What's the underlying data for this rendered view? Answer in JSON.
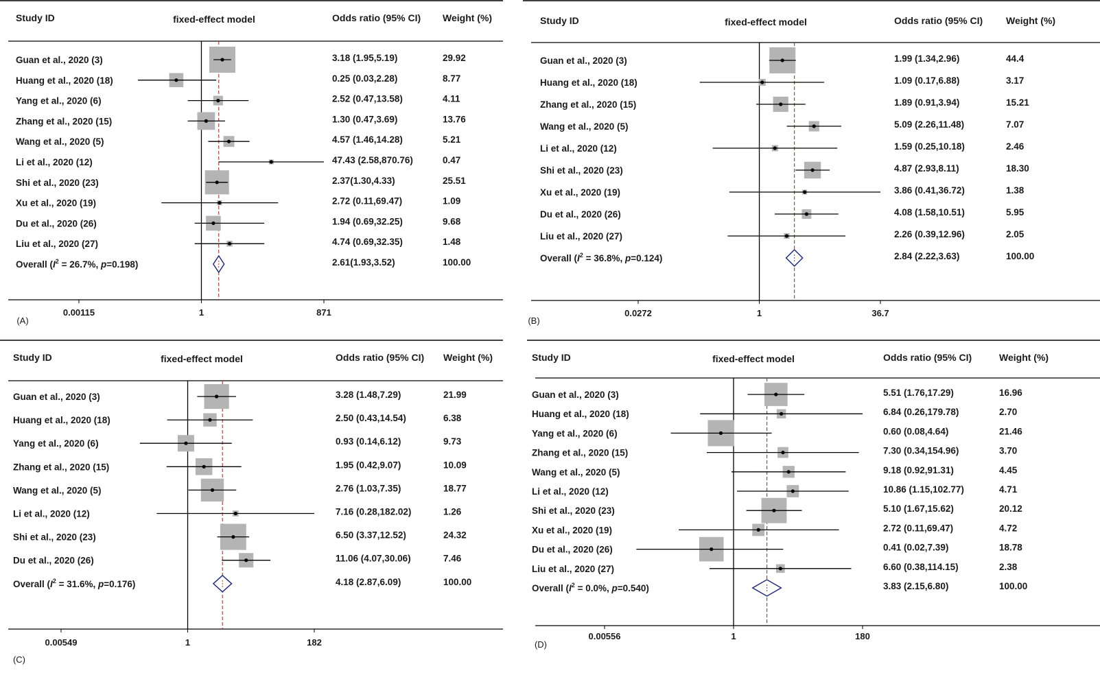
{
  "chart_data": [
    {
      "type": "forest",
      "panel_label": "(A)",
      "headers": {
        "study": "Study ID",
        "model": "fixed-effect model",
        "or": "Odds ratio (95% CI)",
        "weight": "Weight (%)"
      },
      "x_scale": "log",
      "xlim": [
        0.00115,
        871
      ],
      "x_ticks": [
        "0.00115",
        "1",
        "871"
      ],
      "studies": [
        {
          "study": "Guan et al., 2020 (3)",
          "or": 3.18,
          "lower": 1.95,
          "upper": 5.19,
          "or_text": "3.18 (1.95,5.19)",
          "weight": "29.92"
        },
        {
          "study": "Huang et al., 2020 (18)",
          "or": 0.25,
          "lower": 0.03,
          "upper": 2.28,
          "or_text": "0.25 (0.03,2.28)",
          "weight": "8.77"
        },
        {
          "study": "Yang et al., 2020 (6)",
          "or": 2.52,
          "lower": 0.47,
          "upper": 13.58,
          "or_text": "2.52 (0.47,13.58)",
          "weight": "4.11"
        },
        {
          "study": "Zhang et al., 2020 (15)",
          "or": 1.3,
          "lower": 0.47,
          "upper": 3.69,
          "or_text": "1.30 (0.47,3.69)",
          "weight": "13.76"
        },
        {
          "study": "Wang et al., 2020 (5)",
          "or": 4.57,
          "lower": 1.46,
          "upper": 14.28,
          "or_text": "4.57 (1.46,14.28)",
          "weight": "5.21"
        },
        {
          "study": "Li et al., 2020 (12)",
          "or": 47.43,
          "lower": 2.58,
          "upper": 870.76,
          "or_text": "47.43 (2.58,870.76)",
          "weight": "0.47"
        },
        {
          "study": "Shi et al., 2020 (23)",
          "or": 2.37,
          "lower": 1.3,
          "upper": 4.33,
          "or_text": "2.37(1.30,4.33)",
          "weight": "25.51"
        },
        {
          "study": "Xu et al., 2020 (19)",
          "or": 2.72,
          "lower": 0.11,
          "upper": 69.47,
          "or_text": "2.72 (0.11,69.47)",
          "weight": "1.09"
        },
        {
          "study": "Du et al., 2020 (26)",
          "or": 1.94,
          "lower": 0.69,
          "upper": 32.25,
          "or_text": "1.94 (0.69,32.25)",
          "weight": "9.68"
        },
        {
          "study": "Liu et al., 2020 (27)",
          "or": 4.74,
          "lower": 0.69,
          "upper": 32.35,
          "or_text": "4.74 (0.69,32.35)",
          "weight": "1.48"
        }
      ],
      "overall": {
        "label_prefix": "Overall (",
        "i2_symbol": "I",
        "i2_sup": "2",
        "i2_text": " = 26.7%,  ",
        "p_symbol": "p",
        "p_text": "=0.198)",
        "or": 2.61,
        "lower": 1.93,
        "upper": 3.52,
        "or_text": "2.61(1.93,3.52)",
        "weight": "100.00"
      }
    },
    {
      "type": "forest",
      "panel_label": "(B)",
      "headers": {
        "study": "Study ID",
        "model": "fixed-effect model",
        "or": "Odds ratio (95% CI)",
        "weight": "Weight (%)"
      },
      "x_scale": "log",
      "xlim": [
        0.0272,
        36.7
      ],
      "x_ticks": [
        "0.0272",
        "1",
        "36.7"
      ],
      "studies": [
        {
          "study": "Guan et al., 2020 (3)",
          "or": 1.99,
          "lower": 1.34,
          "upper": 2.96,
          "or_text": "1.99 (1.34,2.96)",
          "weight": "44.4"
        },
        {
          "study": "Huang et al., 2020 (18)",
          "or": 1.09,
          "lower": 0.17,
          "upper": 6.88,
          "or_text": "1.09 (0.17,6.88)",
          "weight": "3.17"
        },
        {
          "study": "Zhang et al., 2020 (15)",
          "or": 1.89,
          "lower": 0.91,
          "upper": 3.94,
          "or_text": "1.89 (0.91,3.94)",
          "weight": "15.21"
        },
        {
          "study": "Wang et al., 2020 (5)",
          "or": 5.09,
          "lower": 2.26,
          "upper": 11.48,
          "or_text": "5.09 (2.26,11.48)",
          "weight": "7.07"
        },
        {
          "study": "Li et al., 2020 (12)",
          "or": 1.59,
          "lower": 0.25,
          "upper": 10.18,
          "or_text": "1.59 (0.25,10.18)",
          "weight": "2.46"
        },
        {
          "study": "Shi et al., 2020 (23)",
          "or": 4.87,
          "lower": 2.93,
          "upper": 8.11,
          "or_text": "4.87 (2.93,8.11)",
          "weight": "18.30"
        },
        {
          "study": "Xu et al., 2020 (19)",
          "or": 3.86,
          "lower": 0.41,
          "upper": 36.72,
          "or_text": "3.86 (0.41,36.72)",
          "weight": "1.38"
        },
        {
          "study": "Du et al., 2020 (26)",
          "or": 4.08,
          "lower": 1.58,
          "upper": 10.51,
          "or_text": "4.08 (1.58,10.51)",
          "weight": "5.95"
        },
        {
          "study": "Liu et al., 2020 (27)",
          "or": 2.26,
          "lower": 0.39,
          "upper": 12.96,
          "or_text": "2.26 (0.39,12.96)",
          "weight": "2.05"
        }
      ],
      "overall": {
        "label_prefix": "Overall (",
        "i2_symbol": "I",
        "i2_sup": "2",
        "i2_text": " = 36.8%,  ",
        "p_symbol": "p",
        "p_text": "=0.124)",
        "or": 2.84,
        "lower": 2.22,
        "upper": 3.63,
        "or_text": "2.84 (2.22,3.63)",
        "weight": "100.00"
      }
    },
    {
      "type": "forest",
      "panel_label": "(C)",
      "headers": {
        "study": "Study ID",
        "model": "fixed-effect model",
        "or": "Odds ratio (95% CI)",
        "weight": "Weight (%)"
      },
      "x_scale": "log",
      "xlim": [
        0.00549,
        182
      ],
      "x_ticks": [
        "0.00549",
        "1",
        "182"
      ],
      "studies": [
        {
          "study": "Guan et al., 2020 (3)",
          "or": 3.28,
          "lower": 1.48,
          "upper": 7.29,
          "or_text": "3.28 (1.48,7.29)",
          "weight": "21.99"
        },
        {
          "study": "Huang et al., 2020 (18)",
          "or": 2.5,
          "lower": 0.43,
          "upper": 14.54,
          "or_text": "2.50 (0.43,14.54)",
          "weight": "6.38"
        },
        {
          "study": "Yang et al., 2020 (6)",
          "or": 0.93,
          "lower": 0.14,
          "upper": 6.12,
          "or_text": "0.93 (0.14,6.12)",
          "weight": "9.73"
        },
        {
          "study": "Zhang et al., 2020 (15)",
          "or": 1.95,
          "lower": 0.42,
          "upper": 9.07,
          "or_text": "1.95 (0.42,9.07)",
          "weight": "10.09"
        },
        {
          "study": "Wang et al., 2020 (5)",
          "or": 2.76,
          "lower": 1.03,
          "upper": 7.35,
          "or_text": "2.76 (1.03,7.35)",
          "weight": "18.77"
        },
        {
          "study": "Li et al., 2020 (12)",
          "or": 7.16,
          "lower": 0.28,
          "upper": 182.02,
          "or_text": "7.16 (0.28,182.02)",
          "weight": "1.26"
        },
        {
          "study": "Shi et al., 2020 (23)",
          "or": 6.5,
          "lower": 3.37,
          "upper": 12.52,
          "or_text": "6.50 (3.37,12.52)",
          "weight": "24.32"
        },
        {
          "study": "Du et al., 2020 (26)",
          "or": 11.06,
          "lower": 4.07,
          "upper": 30.06,
          "or_text": "11.06 (4.07,30.06)",
          "weight": "7.46"
        }
      ],
      "overall": {
        "label_prefix": "Overall (",
        "i2_symbol": "I",
        "i2_sup": "2",
        "i2_text": " = 31.6%,  ",
        "p_symbol": "p",
        "p_text": "=0.176)",
        "or": 4.18,
        "lower": 2.87,
        "upper": 6.09,
        "or_text": "4.18 (2.87,6.09)",
        "weight": "100.00"
      }
    },
    {
      "type": "forest",
      "panel_label": "(D)",
      "headers": {
        "study": "Study ID",
        "model": "fixed-effect model",
        "or": "Odds ratio (95% CI)",
        "weight": "Weight (%)"
      },
      "x_scale": "log",
      "xlim": [
        0.00556,
        180
      ],
      "x_ticks": [
        "0.00556",
        "1",
        "180"
      ],
      "studies": [
        {
          "study": "Guan et al., 2020 (3)",
          "or": 5.51,
          "lower": 1.76,
          "upper": 17.29,
          "or_text": "5.51 (1.76,17.29)",
          "weight": "16.96"
        },
        {
          "study": "Huang et al., 2020 (18)",
          "or": 6.84,
          "lower": 0.26,
          "upper": 179.78,
          "or_text": "6.84 (0.26,179.78)",
          "weight": "2.70"
        },
        {
          "study": "Yang et al., 2020 (6)",
          "or": 0.6,
          "lower": 0.08,
          "upper": 4.64,
          "or_text": "0.60 (0.08,4.64)",
          "weight": "21.46"
        },
        {
          "study": "Zhang et al., 2020 (15)",
          "or": 7.3,
          "lower": 0.34,
          "upper": 154.96,
          "or_text": "7.30 (0.34,154.96)",
          "weight": "3.70"
        },
        {
          "study": "Wang et al., 2020 (5)",
          "or": 9.18,
          "lower": 0.92,
          "upper": 91.31,
          "or_text": "9.18 (0.92,91.31)",
          "weight": "4.45"
        },
        {
          "study": "Li et al., 2020 (12)",
          "or": 10.86,
          "lower": 1.15,
          "upper": 102.77,
          "or_text": "10.86 (1.15,102.77)",
          "weight": "4.71"
        },
        {
          "study": "Shi et al., 2020 (23)",
          "or": 5.1,
          "lower": 1.67,
          "upper": 15.62,
          "or_text": "5.10 (1.67,15.62)",
          "weight": "20.12"
        },
        {
          "study": "Xu et al., 2020 (19)",
          "or": 2.72,
          "lower": 0.11,
          "upper": 69.47,
          "or_text": "2.72 (0.11,69.47)",
          "weight": "4.72"
        },
        {
          "study": "Du et al., 2020 (26)",
          "or": 0.41,
          "lower": 0.02,
          "upper": 7.39,
          "or_text": "0.41 (0.02,7.39)",
          "weight": "18.78"
        },
        {
          "study": "Liu et al., 2020 (27)",
          "or": 6.6,
          "lower": 0.38,
          "upper": 114.15,
          "or_text": "6.60 (0.38,114.15)",
          "weight": "2.38"
        }
      ],
      "overall": {
        "label_prefix": "Overall (",
        "i2_symbol": "I",
        "i2_sup": "2",
        "i2_text": " = 0.0%,  ",
        "p_symbol": "p",
        "p_text": "=0.540)",
        "or": 3.83,
        "lower": 2.15,
        "upper": 6.8,
        "or_text": "3.83 (2.15,6.80)",
        "weight": "100.00"
      }
    }
  ],
  "colors": {
    "box": "#b4b4b4",
    "ci_line": "#000000",
    "point": "#000000",
    "diamond_stroke": "#1a237e",
    "pooled_line": "#b03030",
    "axis": "#000000"
  }
}
